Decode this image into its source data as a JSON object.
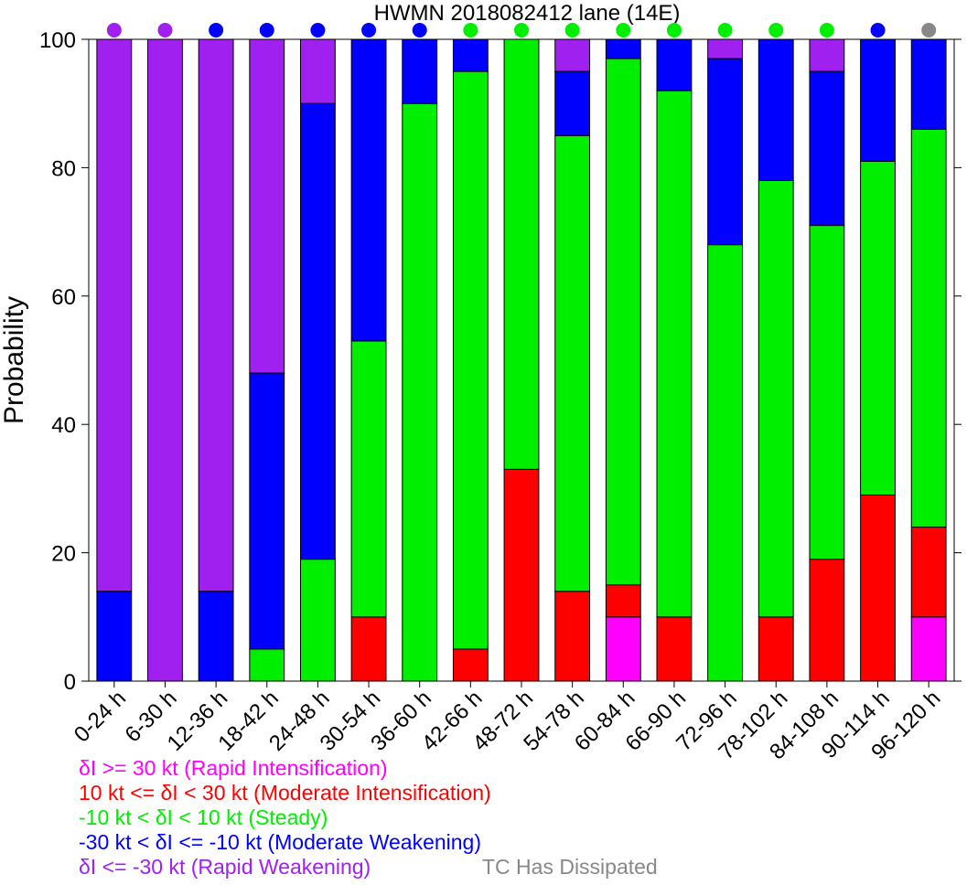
{
  "chart_data": {
    "type": "bar",
    "stacked": true,
    "title": "HWMN 2018082412 lane (14E)",
    "xlabel": "",
    "ylabel": "Probability",
    "ylim": [
      0,
      100
    ],
    "yticks": [
      0,
      20,
      40,
      60,
      80,
      100
    ],
    "grid": false,
    "categories": [
      "0-24 h",
      "6-30 h",
      "12-36 h",
      "18-42 h",
      "24-48 h",
      "30-54 h",
      "36-60 h",
      "42-66 h",
      "48-72 h",
      "54-78 h",
      "60-84 h",
      "66-90 h",
      "72-96 h",
      "78-102 h",
      "84-108 h",
      "90-114 h",
      "96-120 h"
    ],
    "series": [
      {
        "key": "ri",
        "color": "#ff00ff",
        "values": [
          0,
          0,
          0,
          0,
          0,
          0,
          0,
          0,
          0,
          0,
          10,
          0,
          0,
          0,
          0,
          0,
          10
        ]
      },
      {
        "key": "mi",
        "color": "#ff0000",
        "values": [
          0,
          0,
          0,
          0,
          0,
          10,
          0,
          5,
          33,
          14,
          5,
          10,
          0,
          10,
          19,
          29,
          14
        ]
      },
      {
        "key": "st",
        "color": "#00ee00",
        "values": [
          0,
          0,
          0,
          5,
          19,
          43,
          90,
          90,
          67,
          71,
          82,
          82,
          68,
          68,
          52,
          52,
          62
        ]
      },
      {
        "key": "mw",
        "color": "#0000ff",
        "values": [
          14,
          0,
          14,
          43,
          71,
          47,
          10,
          5,
          0,
          10,
          3,
          8,
          29,
          22,
          24,
          19,
          14
        ]
      },
      {
        "key": "rw",
        "color": "#a020f0",
        "values": [
          86,
          100,
          86,
          52,
          10,
          0,
          0,
          0,
          0,
          5,
          0,
          0,
          3,
          0,
          5,
          0,
          0
        ]
      }
    ],
    "top_markers": [
      "#a020f0",
      "#a020f0",
      "#0000ff",
      "#0000ff",
      "#0000ff",
      "#0000ff",
      "#0000ff",
      "#00ee00",
      "#00ee00",
      "#00ee00",
      "#00ee00",
      "#00ee00",
      "#00ee00",
      "#00ee00",
      "#00ee00",
      "#0000ff",
      "#888888"
    ]
  },
  "legend": [
    {
      "label": "δI >= 30 kt (Rapid Intensification)",
      "color": "#ff00ff"
    },
    {
      "label": "10 kt <= δI < 30 kt (Moderate Intensification)",
      "color": "#ff0000"
    },
    {
      "label": "-10 kt < δI < 10 kt (Steady)",
      "color": "#00ee00"
    },
    {
      "label": "-30 kt < δI <= -10 kt (Moderate Weakening)",
      "color": "#0000ff"
    },
    {
      "label": "δI <= -30 kt (Rapid Weakening)",
      "color": "#a020f0"
    }
  ],
  "dissipated": {
    "label": "TC Has Dissipated",
    "color": "#888888"
  }
}
